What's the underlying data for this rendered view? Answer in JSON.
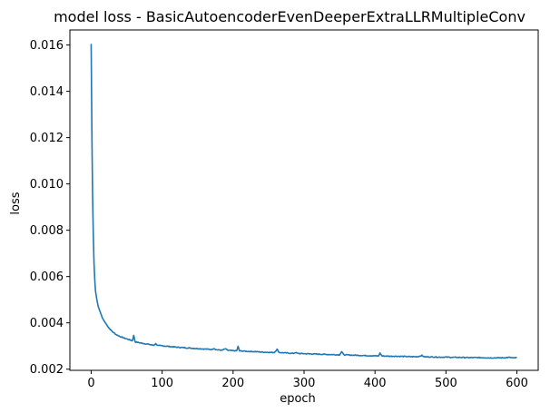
{
  "chart_data": {
    "type": "line",
    "title": "model loss - BasicAutoencoderEvenDeeperExtraLLRMultipleConv",
    "xlabel": "epoch",
    "ylabel": "loss",
    "xlim": [
      -30,
      630
    ],
    "ylim": [
      0.00195,
      0.01665
    ],
    "x_ticks": [
      0,
      100,
      200,
      300,
      400,
      500,
      600
    ],
    "x_tick_labels": [
      "0",
      "100",
      "200",
      "300",
      "400",
      "500",
      "600"
    ],
    "y_ticks": [
      0.002,
      0.004,
      0.006,
      0.008,
      0.01,
      0.012,
      0.014,
      0.016
    ],
    "y_tick_labels": [
      "0.002",
      "0.004",
      "0.006",
      "0.008",
      "0.010",
      "0.012",
      "0.014",
      "0.016"
    ],
    "grid": false,
    "series": [
      {
        "color": "#1f77b4",
        "points": [
          [
            0,
            0.01605
          ],
          [
            1,
            0.0122
          ],
          [
            2,
            0.0095
          ],
          [
            3,
            0.0078
          ],
          [
            4,
            0.0066
          ],
          [
            5,
            0.0059
          ],
          [
            6,
            0.0054
          ],
          [
            8,
            0.005
          ],
          [
            10,
            0.0047
          ],
          [
            13,
            0.00445
          ],
          [
            16,
            0.0042
          ],
          [
            20,
            0.004
          ],
          [
            25,
            0.00378
          ],
          [
            30,
            0.00362
          ],
          [
            35,
            0.0035
          ],
          [
            40,
            0.00342
          ],
          [
            45,
            0.00336
          ],
          [
            50,
            0.00331
          ],
          [
            55,
            0.00326
          ],
          [
            58,
            0.00323
          ],
          [
            60,
            0.00345
          ],
          [
            62,
            0.00318
          ],
          [
            70,
            0.00313
          ],
          [
            80,
            0.00308
          ],
          [
            88,
            0.00303
          ],
          [
            91,
            0.0031
          ],
          [
            94,
            0.00302
          ],
          [
            100,
            0.00301
          ],
          [
            110,
            0.00298
          ],
          [
            120,
            0.00295
          ],
          [
            130,
            0.00293
          ],
          [
            140,
            0.00291
          ],
          [
            150,
            0.00289
          ],
          [
            160,
            0.00287
          ],
          [
            170,
            0.00285
          ],
          [
            173,
            0.0029
          ],
          [
            176,
            0.00284
          ],
          [
            185,
            0.00282
          ],
          [
            189,
            0.00288
          ],
          [
            193,
            0.00281
          ],
          [
            200,
            0.0028
          ],
          [
            205,
            0.00279
          ],
          [
            207,
            0.00298
          ],
          [
            209,
            0.00279
          ],
          [
            220,
            0.00277
          ],
          [
            230,
            0.00276
          ],
          [
            240,
            0.00274
          ],
          [
            250,
            0.00273
          ],
          [
            258,
            0.00272
          ],
          [
            262,
            0.00286
          ],
          [
            265,
            0.00272
          ],
          [
            275,
            0.0027
          ],
          [
            285,
            0.00268
          ],
          [
            288,
            0.00272
          ],
          [
            291,
            0.00268
          ],
          [
            300,
            0.00267
          ],
          [
            310,
            0.00266
          ],
          [
            320,
            0.00265
          ],
          [
            330,
            0.00264
          ],
          [
            340,
            0.00263
          ],
          [
            350,
            0.00262
          ],
          [
            353,
            0.00276
          ],
          [
            356,
            0.00262
          ],
          [
            365,
            0.00261
          ],
          [
            375,
            0.0026
          ],
          [
            385,
            0.00259
          ],
          [
            395,
            0.00258
          ],
          [
            405,
            0.00257
          ],
          [
            407,
            0.00269
          ],
          [
            410,
            0.00257
          ],
          [
            420,
            0.00256
          ],
          [
            430,
            0.00256
          ],
          [
            440,
            0.00255
          ],
          [
            450,
            0.00254
          ],
          [
            460,
            0.00254
          ],
          [
            466,
            0.00259
          ],
          [
            470,
            0.00253
          ],
          [
            480,
            0.00253
          ],
          [
            490,
            0.00252
          ],
          [
            500,
            0.00252
          ],
          [
            510,
            0.00251
          ],
          [
            520,
            0.00251
          ],
          [
            530,
            0.0025
          ],
          [
            540,
            0.0025
          ],
          [
            550,
            0.0025
          ],
          [
            560,
            0.00249
          ],
          [
            570,
            0.00249
          ],
          [
            580,
            0.00249
          ],
          [
            590,
            0.00251
          ],
          [
            595,
            0.00248
          ],
          [
            600,
            0.0025
          ]
        ],
        "noise": 1.8e-05
      }
    ]
  }
}
